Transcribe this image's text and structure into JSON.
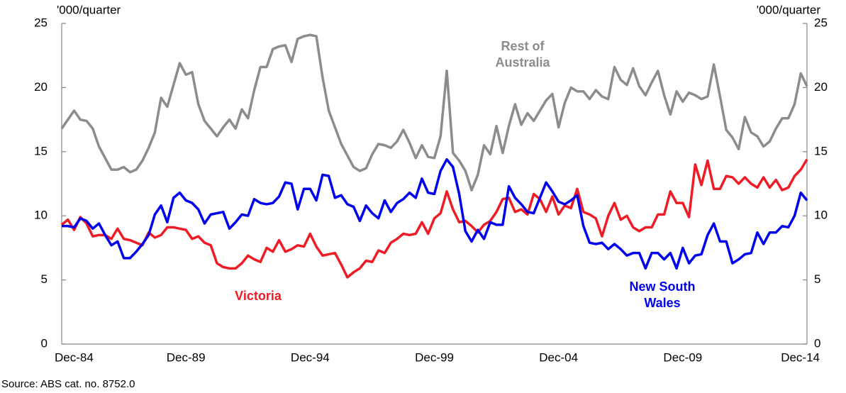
{
  "chart_data": {
    "type": "line",
    "y_label": "'000/quarter",
    "y2_label": "'000/quarter",
    "source": "Source: ABS cat. no. 8752.0",
    "categories": [
      "Dec-84",
      null,
      null,
      null,
      null,
      null,
      null,
      null,
      null,
      null,
      null,
      null,
      null,
      null,
      null,
      null,
      null,
      null,
      null,
      null,
      "Dec-89",
      null,
      null,
      null,
      null,
      null,
      null,
      null,
      null,
      null,
      null,
      null,
      null,
      null,
      null,
      null,
      null,
      null,
      null,
      null,
      "Dec-94",
      null,
      null,
      null,
      null,
      null,
      null,
      null,
      null,
      null,
      null,
      null,
      null,
      null,
      null,
      null,
      null,
      null,
      null,
      null,
      "Dec-99",
      null,
      null,
      null,
      null,
      null,
      null,
      null,
      null,
      null,
      null,
      null,
      null,
      null,
      null,
      null,
      null,
      null,
      null,
      null,
      "Dec-04",
      null,
      null,
      null,
      null,
      null,
      null,
      null,
      null,
      null,
      null,
      null,
      null,
      null,
      null,
      null,
      null,
      null,
      null,
      null,
      "Dec-09",
      null,
      null,
      null,
      null,
      null,
      null,
      null,
      null,
      null,
      null,
      null,
      null,
      null,
      null,
      null,
      null,
      null,
      null,
      null,
      "Dec-14"
    ],
    "series": [
      {
        "name": "Rest of Australia",
        "color": "#8c8c8c",
        "values": [
          16.8,
          17.5,
          18.2,
          17.5,
          17.4,
          16.8,
          15.4,
          14.5,
          13.6,
          13.6,
          13.8,
          13.4,
          13.6,
          14.3,
          15.3,
          16.5,
          19.2,
          18.5,
          20.2,
          21.9,
          21.0,
          21.2,
          18.7,
          17.4,
          16.8,
          16.2,
          16.9,
          17.5,
          16.8,
          18.3,
          17.6,
          19.8,
          21.6,
          21.6,
          23.0,
          23.2,
          23.3,
          22.0,
          23.8,
          24.0,
          24.1,
          24.0,
          20.8,
          18.2,
          16.9,
          15.6,
          14.7,
          13.8,
          13.5,
          13.7,
          14.8,
          15.6,
          15.5,
          15.3,
          15.8,
          16.7,
          15.7,
          14.5,
          15.5,
          14.6,
          14.5,
          16.2,
          21.3,
          14.9,
          14.3,
          13.5,
          12.0,
          13.2,
          15.5,
          14.8,
          17.0,
          14.9,
          17.0,
          18.7,
          17.1,
          18.0,
          17.4,
          18.2,
          19.0,
          19.5,
          16.9,
          18.8,
          20.0,
          19.7,
          19.7,
          19.1,
          19.8,
          19.3,
          19.1,
          21.6,
          20.6,
          20.2,
          21.5,
          20.1,
          19.4,
          20.4,
          21.3,
          19.4,
          17.9,
          19.7,
          18.9,
          19.6,
          19.4,
          19.1,
          19.3,
          21.8,
          19.3,
          16.7,
          16.1,
          15.2,
          17.7,
          16.5,
          16.2,
          15.4,
          15.8,
          16.8,
          17.6,
          17.6,
          18.7,
          21.1,
          20.1
        ]
      },
      {
        "name": "Victoria",
        "color": "#ee1c25",
        "values": [
          9.3,
          9.7,
          8.9,
          9.9,
          9.4,
          8.4,
          8.5,
          8.5,
          8.2,
          9.0,
          8.2,
          8.1,
          7.9,
          7.7,
          8.7,
          8.3,
          8.5,
          9.1,
          9.1,
          9.0,
          8.9,
          8.2,
          8.4,
          7.9,
          7.7,
          6.3,
          6.0,
          5.9,
          5.9,
          6.3,
          6.9,
          6.6,
          6.4,
          7.5,
          7.2,
          8.1,
          7.2,
          7.4,
          7.7,
          7.6,
          8.6,
          7.6,
          6.9,
          7.0,
          7.1,
          6.2,
          5.2,
          5.6,
          5.9,
          6.5,
          6.4,
          7.3,
          7.1,
          7.9,
          8.2,
          8.6,
          8.5,
          8.6,
          9.5,
          8.6,
          9.8,
          10.2,
          11.9,
          10.5,
          9.5,
          9.6,
          9.2,
          8.7,
          9.3,
          9.6,
          10.3,
          11.3,
          11.4,
          10.3,
          10.5,
          10.1,
          11.7,
          11.3,
          10.3,
          11.5,
          10.1,
          10.8,
          10.6,
          12.1,
          10.3,
          10.1,
          9.8,
          8.4,
          10.0,
          11.0,
          9.7,
          10.0,
          9.1,
          8.8,
          9.1,
          9.1,
          10.1,
          10.1,
          11.9,
          11.0,
          11.0,
          9.9,
          14.0,
          12.4,
          14.3,
          12.1,
          12.1,
          13.1,
          13.0,
          12.5,
          13.0,
          12.5,
          12.2,
          13.0,
          12.2,
          12.8,
          12.0,
          12.2,
          13.1,
          13.6,
          14.4
        ]
      },
      {
        "name": "New South Wales",
        "color": "#0000ee",
        "values": [
          9.2,
          9.2,
          9.1,
          9.8,
          9.6,
          9.0,
          9.4,
          8.5,
          7.7,
          8.0,
          6.7,
          6.7,
          7.2,
          7.8,
          8.5,
          10.1,
          10.8,
          9.5,
          11.4,
          11.8,
          11.2,
          11.0,
          10.5,
          9.4,
          10.1,
          10.2,
          10.3,
          9.0,
          9.5,
          10.1,
          10.0,
          11.3,
          11.0,
          10.9,
          11.0,
          11.5,
          12.6,
          12.5,
          10.5,
          12.1,
          12.1,
          11.2,
          13.2,
          13.1,
          11.4,
          11.6,
          10.9,
          10.7,
          9.6,
          10.8,
          10.2,
          9.8,
          11.2,
          10.3,
          11.0,
          11.3,
          11.8,
          11.4,
          12.9,
          11.8,
          11.7,
          13.5,
          14.4,
          13.8,
          11.7,
          8.8,
          8.0,
          8.9,
          8.2,
          9.5,
          9.3,
          9.3,
          12.3,
          11.4,
          10.9,
          10.3,
          10.2,
          11.4,
          12.6,
          11.9,
          11.1,
          10.9,
          11.2,
          11.6,
          9.2,
          7.9,
          7.8,
          7.9,
          7.4,
          7.8,
          7.4,
          6.9,
          7.1,
          7.1,
          5.9,
          7.1,
          7.1,
          6.6,
          7.1,
          5.9,
          7.5,
          6.3,
          6.9,
          7.0,
          8.5,
          9.4,
          8.0,
          8.0,
          6.3,
          6.6,
          7.0,
          7.1,
          8.7,
          7.8,
          8.7,
          8.7,
          9.2,
          9.1,
          10.0,
          11.8,
          11.2
        ]
      }
    ],
    "annotations": [
      {
        "lines": [
          "Rest of",
          "Australia"
        ],
        "color": "#8c8c8c"
      },
      {
        "lines": [
          "Victoria"
        ],
        "color": "#ee1c25"
      },
      {
        "lines": [
          "New South",
          "Wales"
        ],
        "color": "#0000ee"
      }
    ],
    "ylim": [
      0,
      25
    ],
    "yticks": [
      0,
      5,
      10,
      15,
      20,
      25
    ],
    "y2lim": [
      0,
      25
    ],
    "y2ticks": [
      0,
      5,
      10,
      15,
      20,
      25
    ],
    "grid": false
  }
}
